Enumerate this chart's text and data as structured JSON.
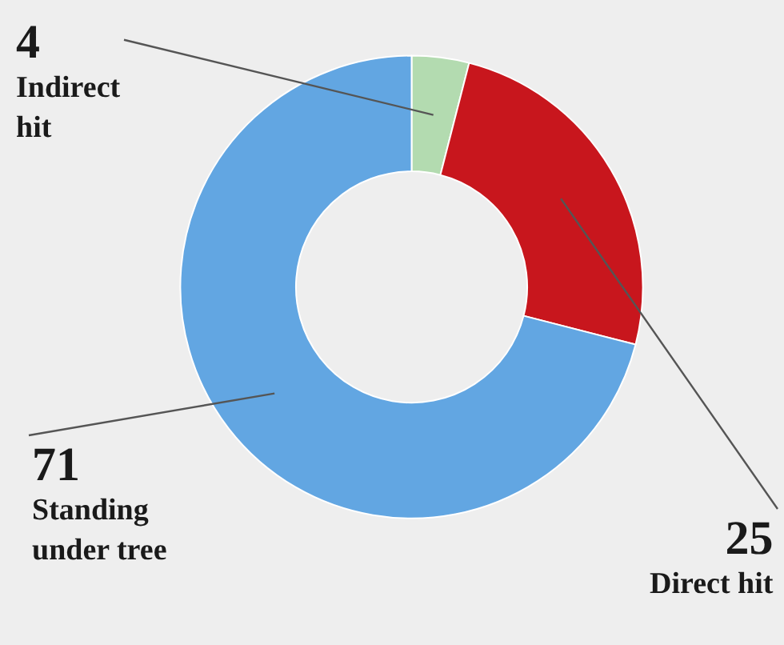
{
  "chart_data": {
    "type": "donut",
    "categories": [
      "Indirect\nhit",
      "Direct hit",
      "Standing\nunder tree"
    ],
    "values": [
      4,
      25,
      71
    ],
    "colors": [
      "#b3dbb0",
      "#c8161d",
      "#62a6e2"
    ],
    "data_labels": true,
    "legend": false
  }
}
